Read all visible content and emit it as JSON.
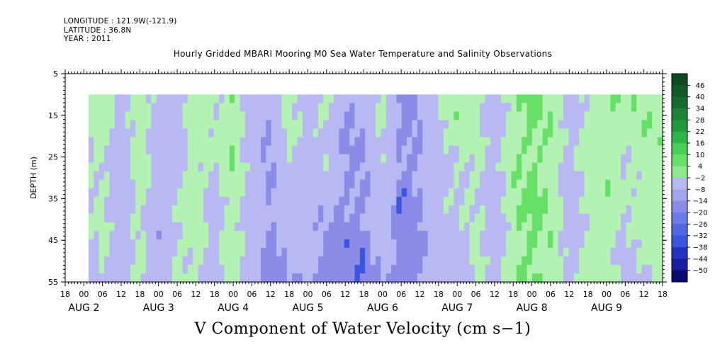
{
  "meta": {
    "longitude": "LONGITUDE : 121.9W(-121.9)",
    "latitude": "LATITUDE : 36.8N",
    "year": "YEAR : 2011"
  },
  "chart_data": {
    "type": "heatmap",
    "title": "Hourly Gridded MBARI Mooring M0 Sea Water Temperature and Salinity Observations",
    "variable_label": "V Component of Water Velocity (cm s−1)",
    "ylabel": "DEPTH (m)",
    "ylim": [
      5,
      55
    ],
    "y_inverted": true,
    "y_ticks": [
      "5",
      "15",
      "25",
      "35",
      "45",
      "55"
    ],
    "x_range_hours": [
      -6,
      186
    ],
    "x_hour_labels": [
      "18",
      "00",
      "06",
      "12",
      "18",
      "00",
      "06",
      "12",
      "18",
      "00",
      "06",
      "12",
      "18",
      "00",
      "06",
      "12",
      "18",
      "00",
      "06",
      "12",
      "18",
      "00",
      "06",
      "12",
      "18",
      "00",
      "06",
      "12",
      "18",
      "00",
      "06",
      "12",
      "18"
    ],
    "x_day_labels": [
      {
        "label": "AUG  2",
        "hour": 0
      },
      {
        "label": "AUG  3",
        "hour": 24
      },
      {
        "label": "AUG  4",
        "hour": 48
      },
      {
        "label": "AUG  5",
        "hour": 72
      },
      {
        "label": "AUG  6",
        "hour": 96
      },
      {
        "label": "AUG  7",
        "hour": 120
      },
      {
        "label": "AUG  8",
        "hour": 144
      },
      {
        "label": "AUG  9",
        "hour": 168
      }
    ],
    "data_start_hour": 1.5,
    "data_top_depth": 10,
    "colorbar": {
      "levels": [
        "46",
        "40",
        "34",
        "28",
        "22",
        "16",
        "10",
        "4",
        "-2",
        "-8",
        "-14",
        "-20",
        "-26",
        "-32",
        "-38",
        "-44",
        "-50"
      ],
      "min": -50,
      "max": 52,
      "colors": {
        "pos_light": "#b4f2b4",
        "pos_mid": "#66e066",
        "pos_dark": "#1e9a3c",
        "pos_deep": "#0d4a22",
        "neg_light": "#b8b8f2",
        "neg_mid": "#8c8ce8",
        "neg_dark": "#3a56e0",
        "neg_deep": "#0a0a70"
      }
    },
    "series_profile": {
      "description_hours": [
        0,
        6,
        12,
        18,
        24,
        30,
        36,
        42,
        48,
        54,
        60,
        66,
        72,
        78,
        84,
        90,
        96,
        102,
        108,
        114,
        120,
        126,
        132,
        138,
        144,
        150,
        156,
        162,
        168,
        174,
        180,
        186
      ],
      "v_surface": [
        4,
        6,
        -6,
        8,
        -4,
        -10,
        10,
        2,
        12,
        -8,
        -12,
        6,
        -4,
        8,
        -14,
        -10,
        6,
        -16,
        -12,
        2,
        10,
        4,
        -6,
        8,
        14,
        10,
        -4,
        6,
        12,
        8,
        10,
        8
      ],
      "v_bottom": [
        -6,
        2,
        -10,
        4,
        -12,
        6,
        4,
        -8,
        8,
        -6,
        -18,
        -14,
        -10,
        -22,
        -18,
        -20,
        -12,
        -22,
        -16,
        -8,
        -10,
        4,
        -8,
        10,
        14,
        8,
        -6,
        4,
        6,
        -4,
        2,
        4
      ]
    }
  }
}
